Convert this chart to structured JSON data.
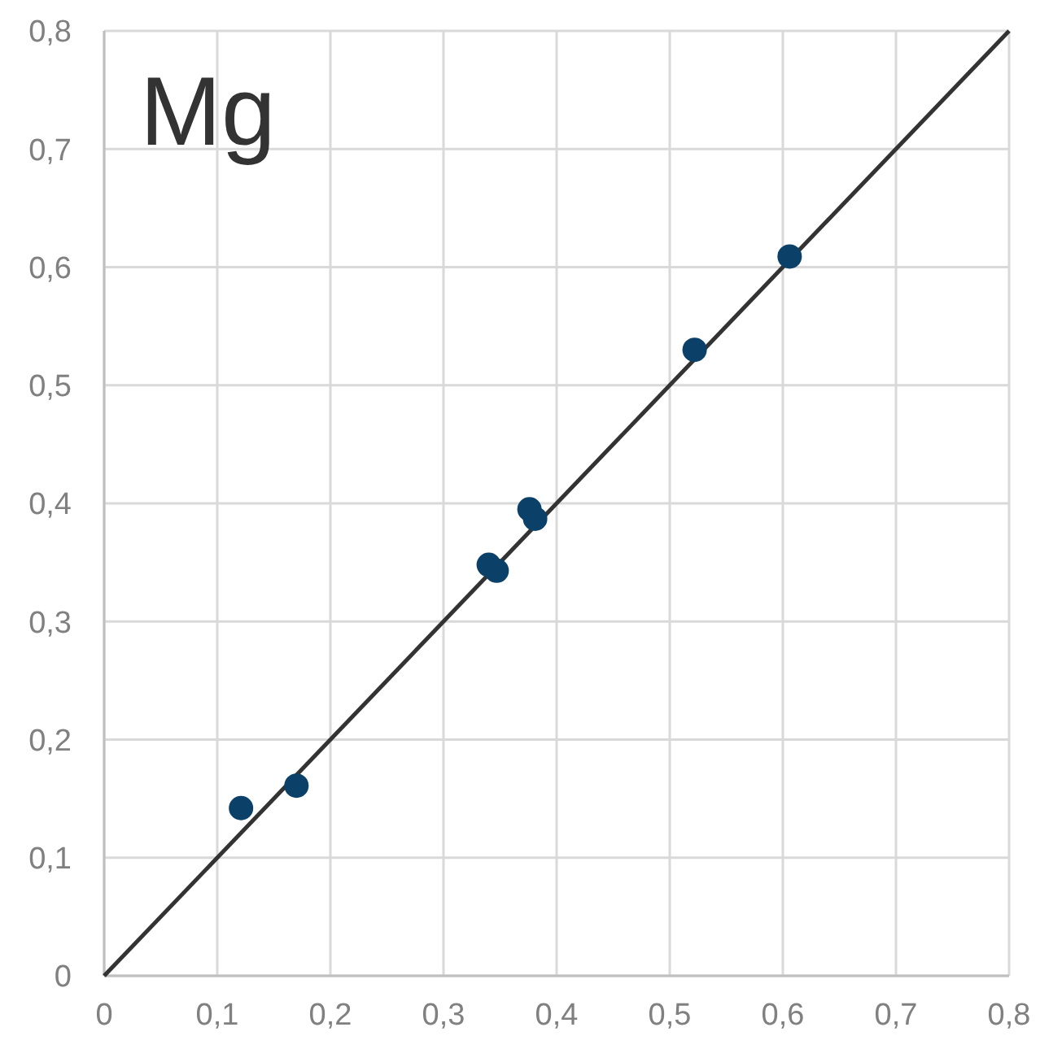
{
  "chart_data": {
    "type": "scatter",
    "title": "Mg",
    "xlim": [
      0,
      0.8
    ],
    "ylim": [
      0,
      0.8
    ],
    "xticks": [
      0,
      {
        "value": 0.1,
        "label": "0,1"
      },
      {
        "value": 0.2,
        "label": "0,2"
      },
      {
        "value": 0.3,
        "label": "0,3"
      },
      {
        "value": 0.4,
        "label": "0,4"
      },
      {
        "value": 0.5,
        "label": "0,5"
      },
      {
        "value": 0.6,
        "label": "0,6"
      },
      {
        "value": 0.7,
        "label": "0,7"
      },
      {
        "value": 0.8,
        "label": "0,8"
      }
    ],
    "yticks": [
      0,
      {
        "value": 0.1,
        "label": "0,1"
      },
      {
        "value": 0.2,
        "label": "0,2"
      },
      {
        "value": 0.3,
        "label": "0,3"
      },
      {
        "value": 0.4,
        "label": "0,4"
      },
      {
        "value": 0.5,
        "label": "0,5"
      },
      {
        "value": 0.6,
        "label": "0,6"
      },
      {
        "value": 0.7,
        "label": "0,7"
      },
      {
        "value": 0.8,
        "label": "0,8"
      }
    ],
    "grid": true,
    "series": [
      {
        "color": "#0b4068",
        "marker": "circle",
        "x": [
          0.121,
          0.17,
          0.34,
          0.347,
          0.376,
          0.381,
          0.522,
          0.606
        ],
        "values": [
          0.142,
          0.161,
          0.348,
          0.343,
          0.395,
          0.387,
          0.53,
          0.609
        ]
      },
      {
        "type": "line",
        "marker": "none",
        "color": "#333333",
        "x": [
          0,
          0.8
        ],
        "values": [
          0,
          0.8
        ]
      }
    ]
  }
}
